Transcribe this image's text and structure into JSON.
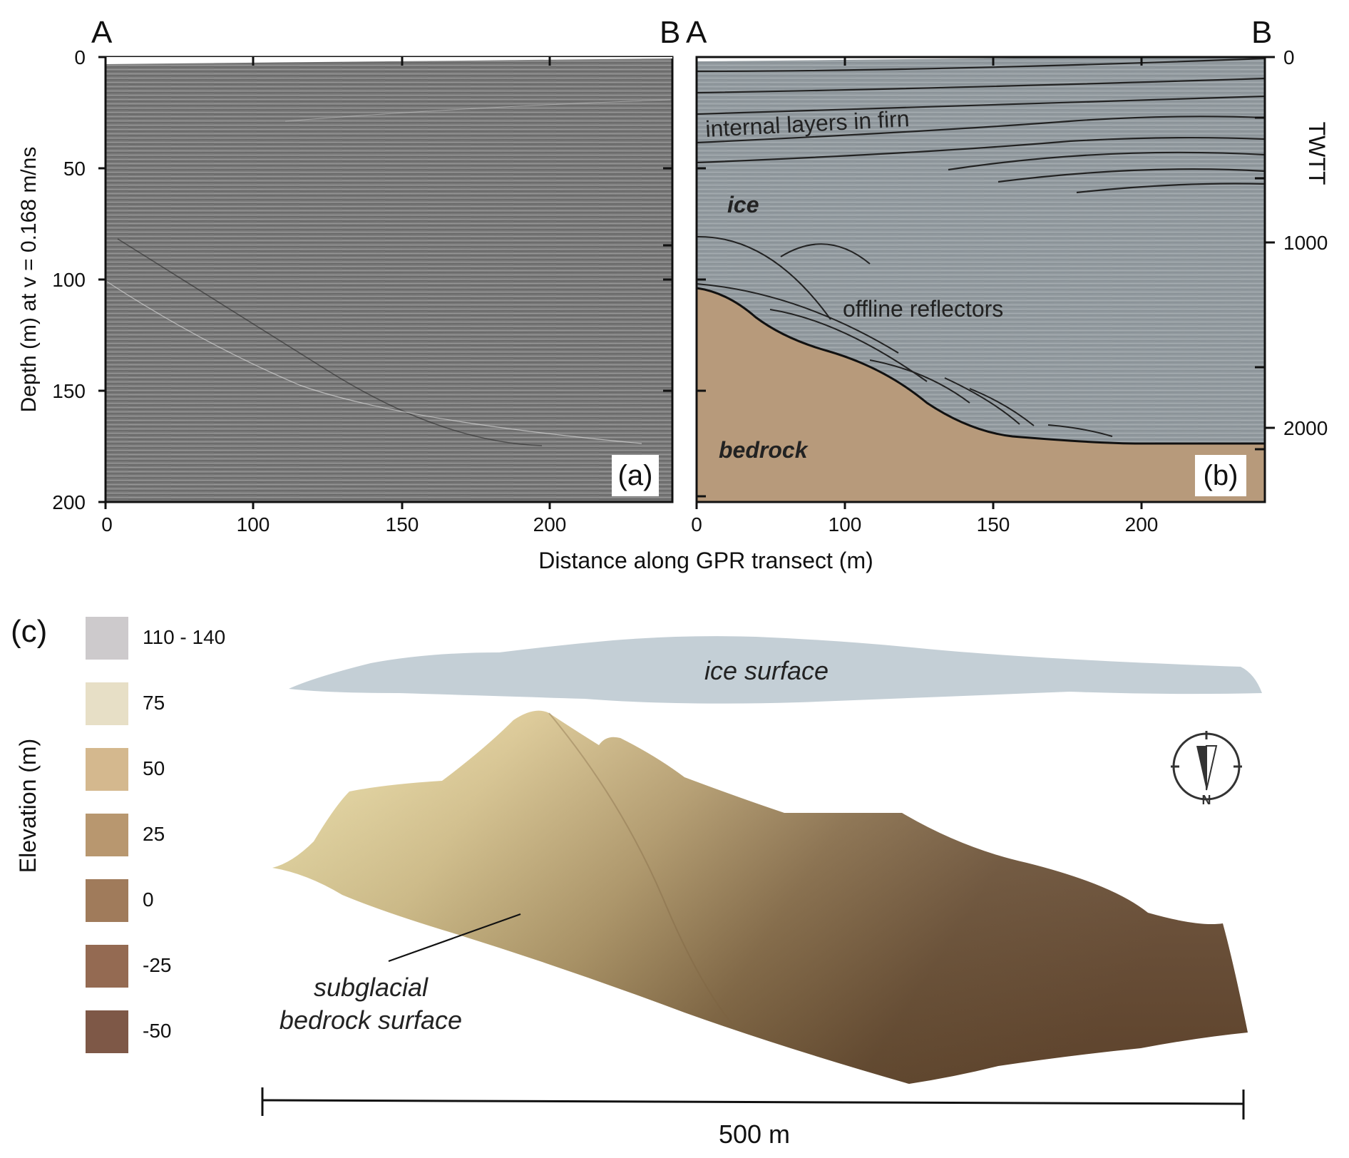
{
  "figure": {
    "panel_a": {
      "label": "(a)",
      "corner_left": "A",
      "corner_right": "B",
      "ylabel": "Depth (m) at v = 0.168 m/ns",
      "y_ticks": [
        "0",
        "50",
        "100",
        "150",
        "200"
      ],
      "x_ticks": [
        "0",
        "100",
        "150",
        "200"
      ]
    },
    "panel_b": {
      "label": "(b)",
      "corner_left": "A",
      "corner_right": "B",
      "right_axis_label": "TWTT",
      "right_ticks": [
        "0",
        "1000",
        "2000"
      ],
      "x_ticks": [
        "0",
        "100",
        "150",
        "200"
      ],
      "annotations": {
        "internal_layers": "internal layers in firn",
        "ice": "ice",
        "offline_reflectors": "offline reflectors",
        "bedrock": "bedrock"
      },
      "colors": {
        "ice": "#8e979c",
        "bedrock": "#b89a7c"
      }
    },
    "xlabel": "Distance along GPR transect (m)",
    "panel_c": {
      "label": "(c)",
      "ylabel": "Elevation (m)",
      "legend": [
        {
          "label": "110 - 140",
          "color": "#cdcacc"
        },
        {
          "label": "75",
          "color": "#e7dfc6"
        },
        {
          "label": "50",
          "color": "#d4b88e"
        },
        {
          "label": "25",
          "color": "#b8976f"
        },
        {
          "label": "0",
          "color": "#a07b5b"
        },
        {
          "label": "-25",
          "color": "#946a52"
        },
        {
          "label": "-50",
          "color": "#7e5847"
        }
      ],
      "ice_surface_label": "ice surface",
      "bedrock_label_line1": "subglacial",
      "bedrock_label_line2": "bedrock surface",
      "scale_bar_label": "500 m",
      "north_label": "N",
      "colors": {
        "ice_surface": "#c4cfd6"
      }
    }
  }
}
